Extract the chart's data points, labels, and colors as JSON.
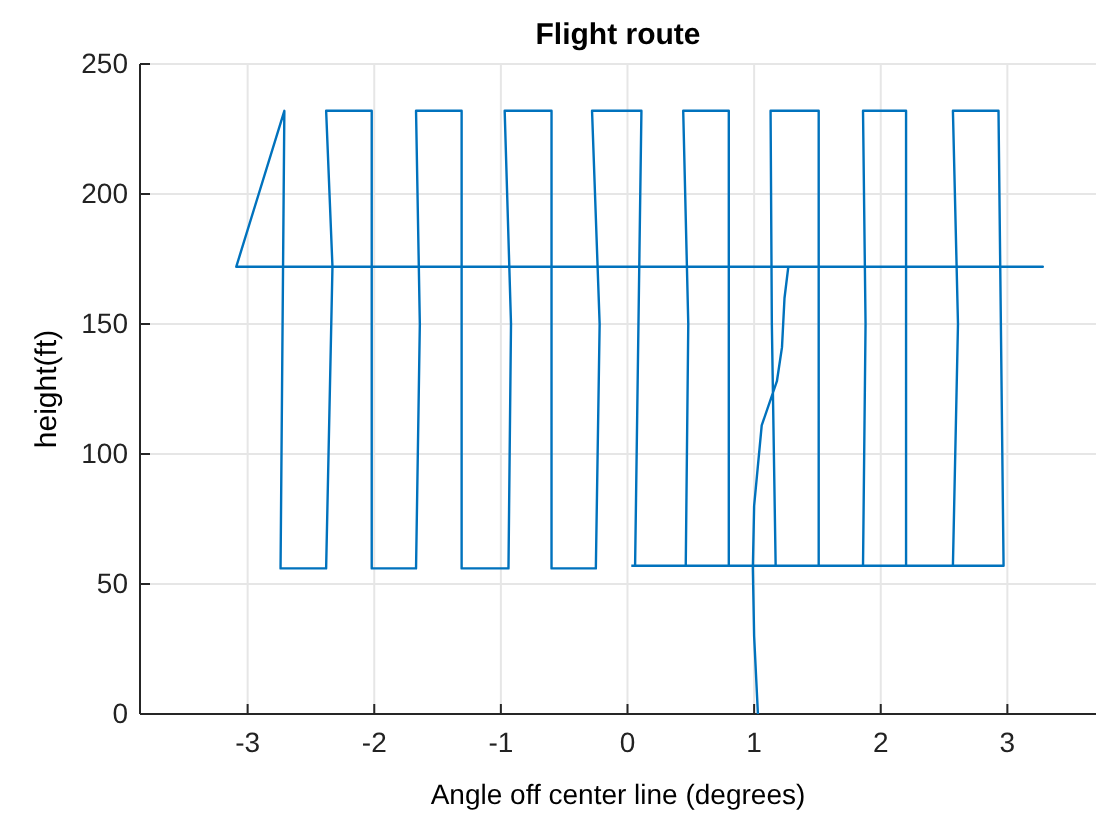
{
  "chart_data": {
    "type": "line",
    "title": "Flight route",
    "xlabel": "Angle off center line (degrees)",
    "ylabel": "height(ft)",
    "x": [
      1.03,
      1.0,
      0.99,
      1.0,
      1.06,
      1.18,
      1.22,
      1.24,
      1.27,
      3.28,
      -3.09,
      -2.71,
      -2.74,
      -2.38,
      -2.33,
      -2.38,
      -2.02,
      -2.02,
      -1.67,
      -1.64,
      -1.67,
      -1.31,
      -1.31,
      -0.94,
      -0.92,
      -0.97,
      -0.6,
      -0.6,
      -0.25,
      -0.22,
      -0.28,
      0.11,
      0.06,
      0.46,
      0.48,
      0.44,
      0.8,
      0.8,
      1.17,
      1.14,
      1.13,
      1.51,
      1.51,
      1.86,
      1.88,
      1.86,
      2.2,
      2.2,
      2.57,
      2.61,
      2.57,
      2.93,
      2.97,
      0.03
    ],
    "values": [
      0,
      30,
      56,
      80,
      111,
      128,
      141,
      160,
      172,
      172,
      172,
      232,
      56,
      56,
      172,
      232,
      232,
      56,
      56,
      150,
      232,
      232,
      56,
      56,
      150,
      232,
      232,
      56,
      56,
      150,
      232,
      232,
      57,
      57,
      150,
      232,
      232,
      57,
      57,
      150,
      232,
      232,
      57,
      57,
      150,
      232,
      232,
      57,
      57,
      150,
      232,
      232,
      57,
      57
    ],
    "color": "#0072bd",
    "xlim": [
      -3.85,
      3.7
    ],
    "ylim": [
      0,
      250
    ],
    "xticks": [
      -3,
      -2,
      -1,
      0,
      1,
      2,
      3
    ],
    "yticks": [
      0,
      50,
      100,
      150,
      200,
      250
    ],
    "grid": true
  }
}
